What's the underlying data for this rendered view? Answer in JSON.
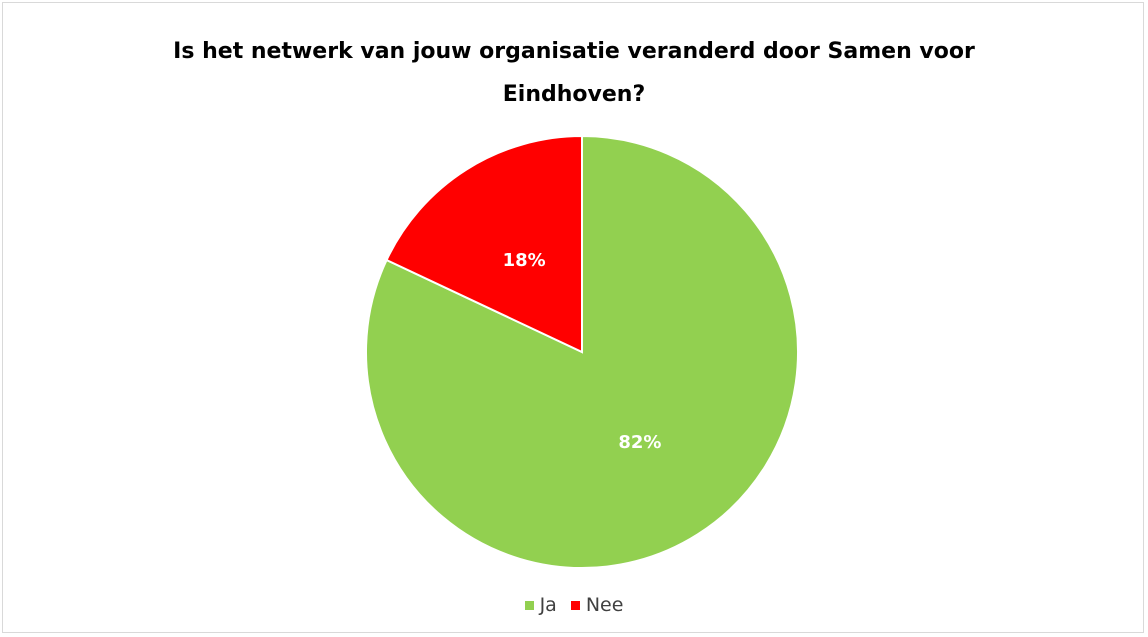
{
  "chart_data": {
    "type": "pie",
    "title_lines": [
      "Is het netwerk van jouw organisatie veranderd door Samen voor",
      "Eindhoven?"
    ],
    "slices": [
      {
        "name": "Ja",
        "value": 82,
        "label": "82%",
        "color": "#92d050"
      },
      {
        "name": "Nee",
        "value": 18,
        "label": "18%",
        "color": "#ff0000"
      }
    ],
    "legend_position": "bottom",
    "start": "12-o'clock",
    "direction": "clockwise"
  }
}
